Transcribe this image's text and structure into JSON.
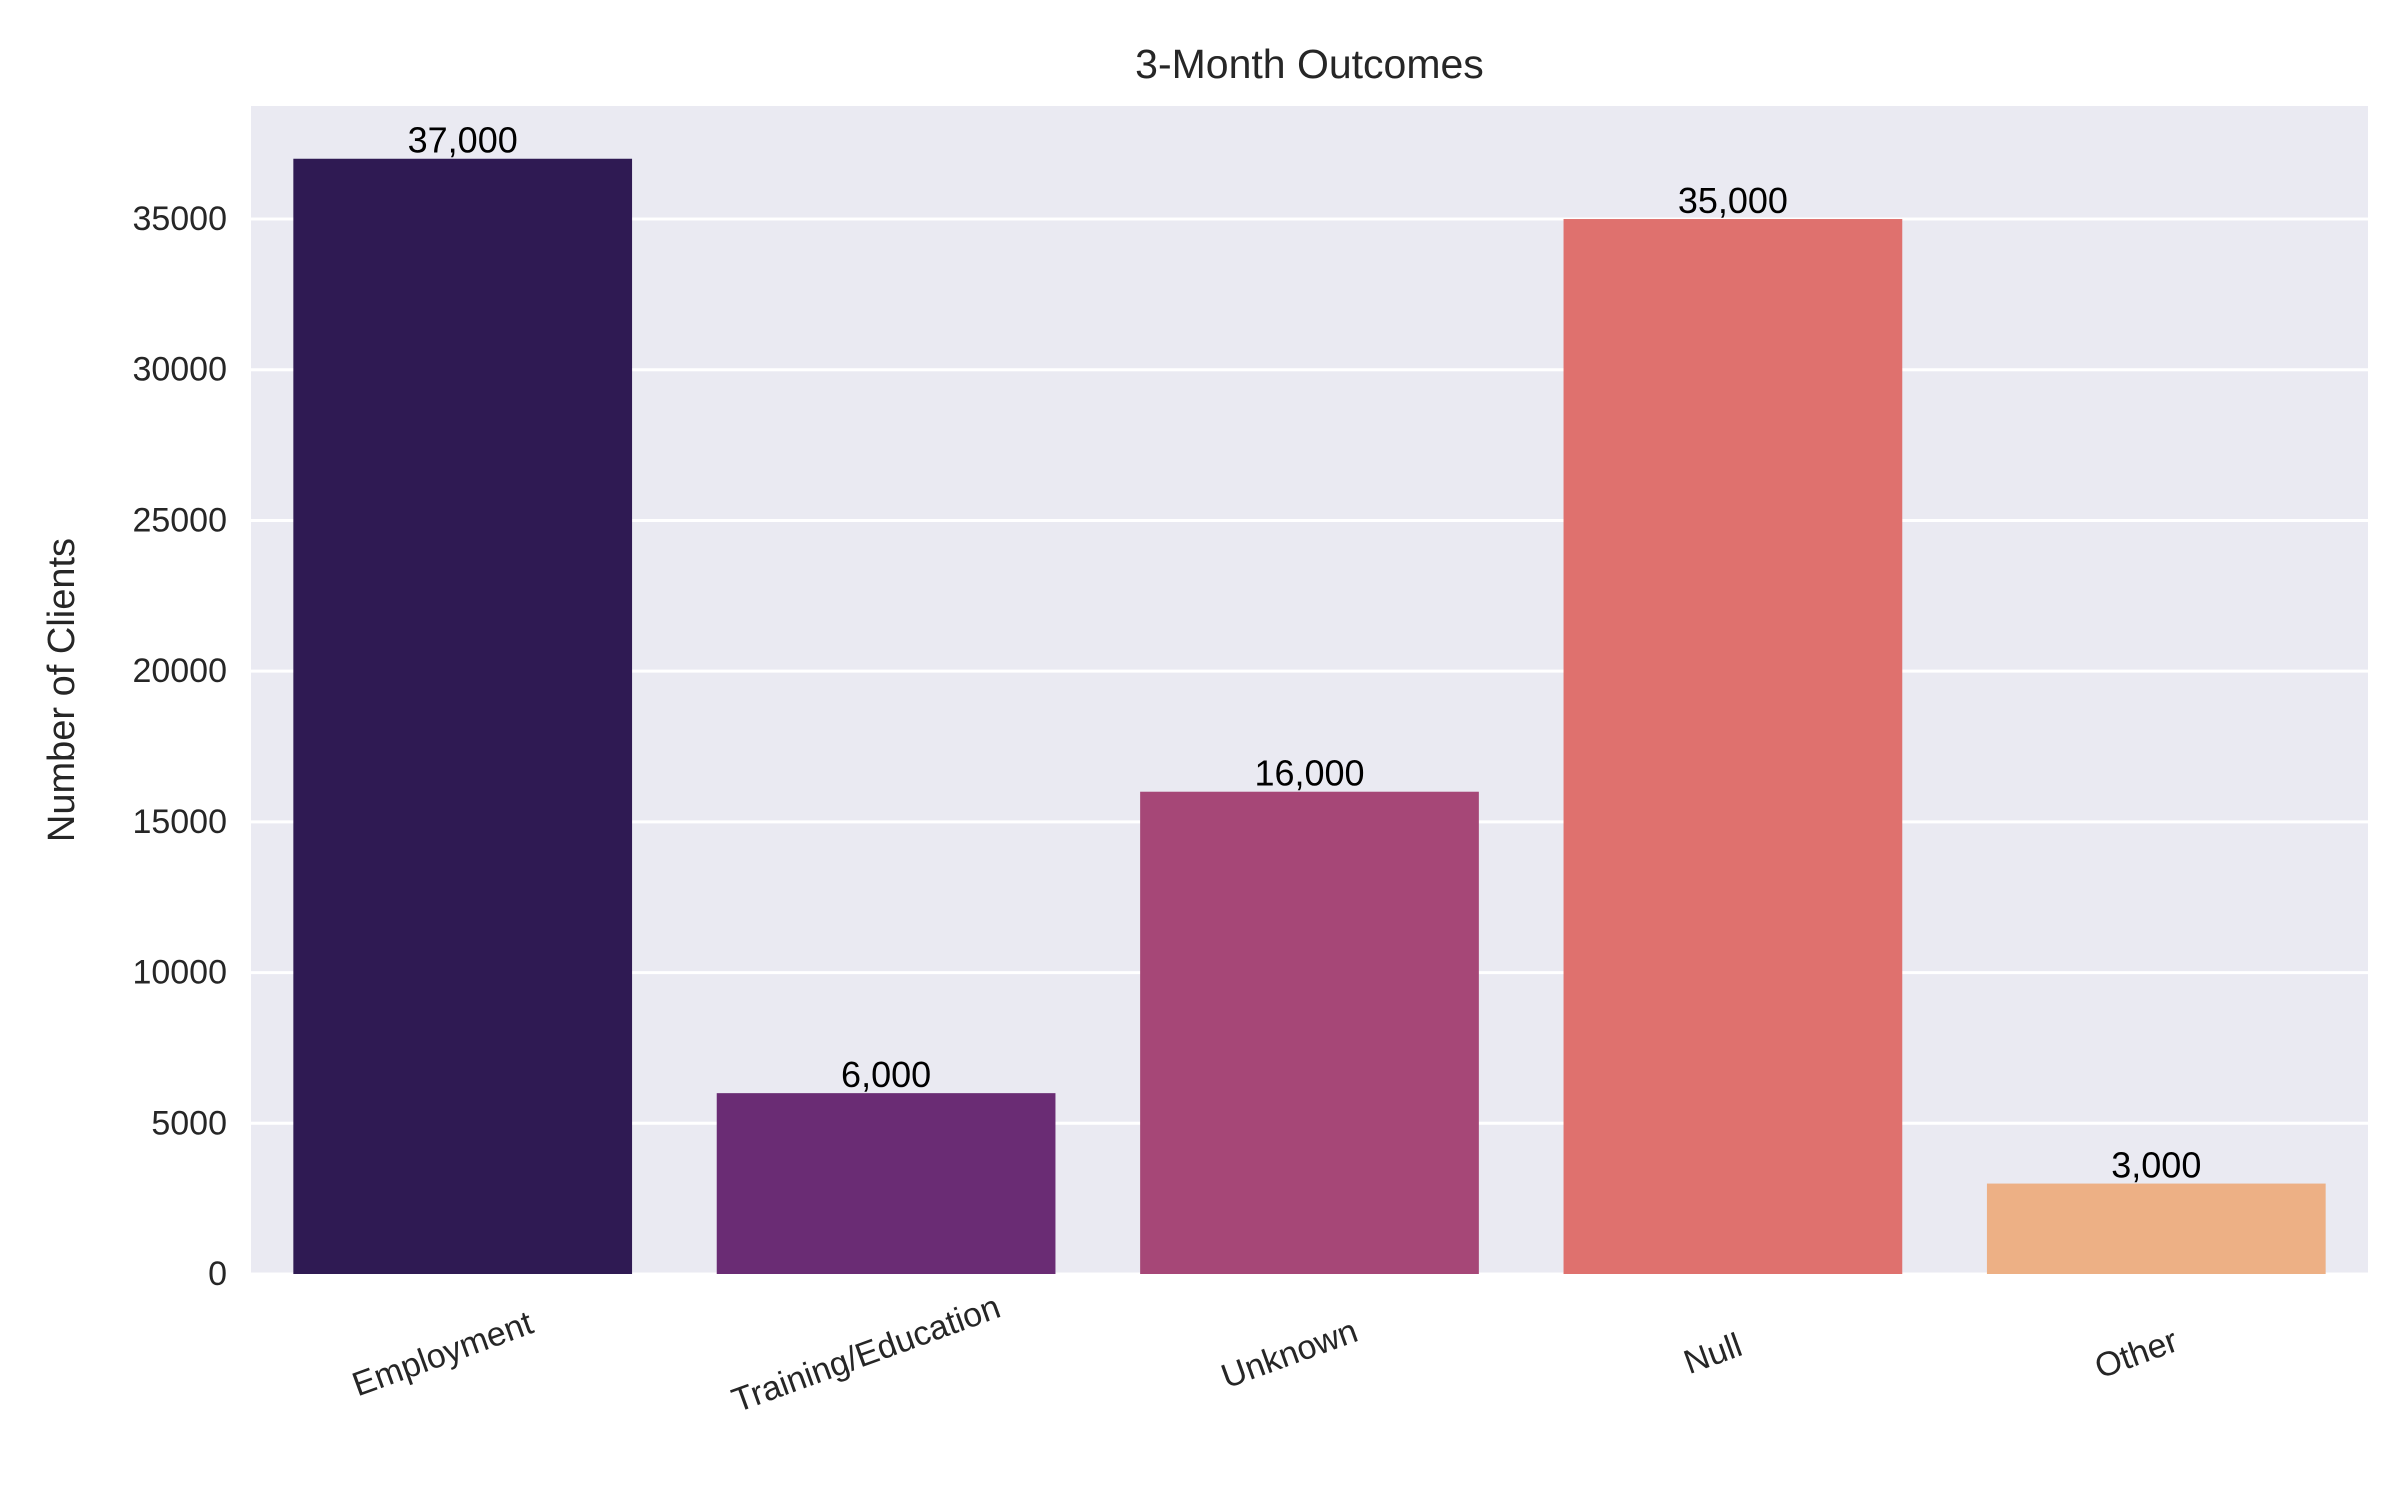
{
  "chart_data": {
    "type": "bar",
    "title": "3-Month Outcomes",
    "xlabel": "",
    "ylabel": "Number of Clients",
    "categories": [
      "Employment",
      "Training/Education",
      "Unknown",
      "Null",
      "Other"
    ],
    "values": [
      37000,
      6000,
      16000,
      35000,
      3000
    ],
    "data_labels": [
      "37,000",
      "6,000",
      "16,000",
      "35,000",
      "3,000"
    ],
    "colors": [
      "#2f1a53",
      "#6a2c74",
      "#a64777",
      "#df716e",
      "#edb085"
    ],
    "ylim": [
      0,
      38750
    ],
    "yticks": [
      0,
      5000,
      10000,
      15000,
      20000,
      25000,
      30000,
      35000
    ],
    "ytick_labels": [
      "0",
      "5000",
      "10000",
      "15000",
      "20000",
      "25000",
      "30000",
      "35000"
    ],
    "grid": true,
    "grid_axis": "y",
    "legend": "none",
    "plot_background": "#eaeaf2",
    "grid_color": "#ffffff",
    "text_color": "#262626"
  }
}
